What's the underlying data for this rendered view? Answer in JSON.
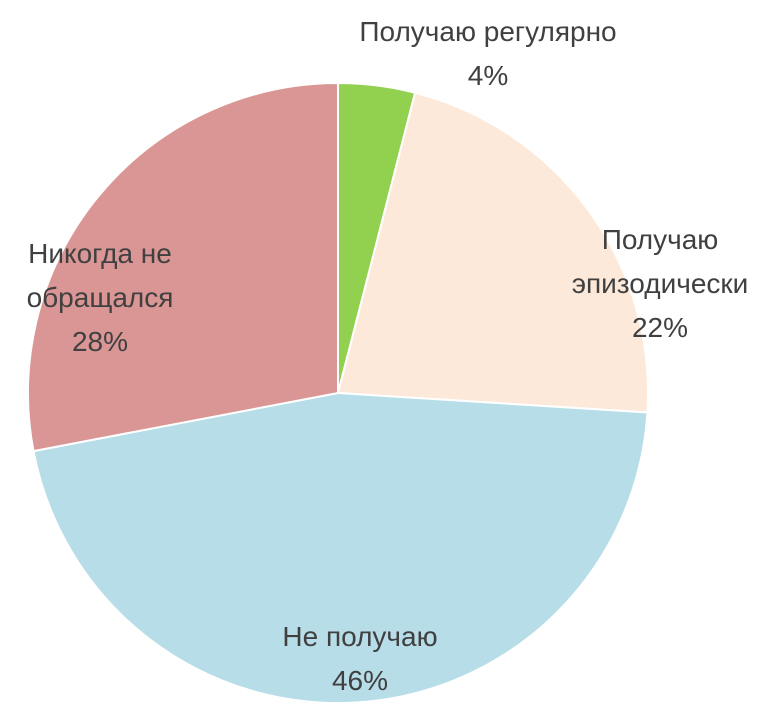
{
  "chart_data": {
    "type": "pie",
    "categories": [
      "Получаю регулярно",
      "Получаю эпизодически",
      "Не получаю",
      "Никогда не обращался"
    ],
    "values": [
      4,
      22,
      46,
      28
    ],
    "value_labels": [
      "4%",
      "22%",
      "46%",
      "28%"
    ],
    "colors": [
      "#92d050",
      "#fde9d9",
      "#b7dde8",
      "#d99694"
    ]
  }
}
